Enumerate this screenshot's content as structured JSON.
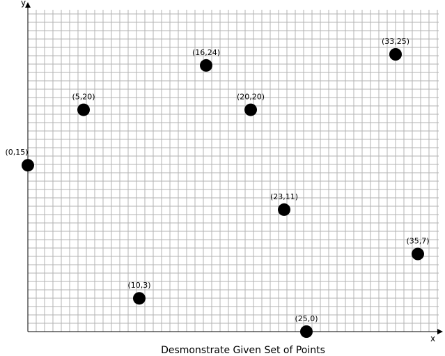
{
  "chart_data": {
    "type": "scatter",
    "title": "Desmonstrate Given Set of Points",
    "xlabel": "x",
    "ylabel": "y",
    "grid": true,
    "tick_labels_shown": false,
    "points": [
      {
        "x": 0,
        "y": 15,
        "label": "(0,15)"
      },
      {
        "x": 5,
        "y": 20,
        "label": "(5,20)"
      },
      {
        "x": 10,
        "y": 3,
        "label": "(10,3)"
      },
      {
        "x": 16,
        "y": 24,
        "label": "(16,24)"
      },
      {
        "x": 20,
        "y": 20,
        "label": "(20,20)"
      },
      {
        "x": 23,
        "y": 11,
        "label": "(23,11)"
      },
      {
        "x": 25,
        "y": 0,
        "label": "(25,0)"
      },
      {
        "x": 33,
        "y": 25,
        "label": "(33,25)"
      },
      {
        "x": 35,
        "y": 7,
        "label": "(35,7)"
      }
    ],
    "marker_color": "#000000",
    "grid_color": "#b3b3b3"
  }
}
